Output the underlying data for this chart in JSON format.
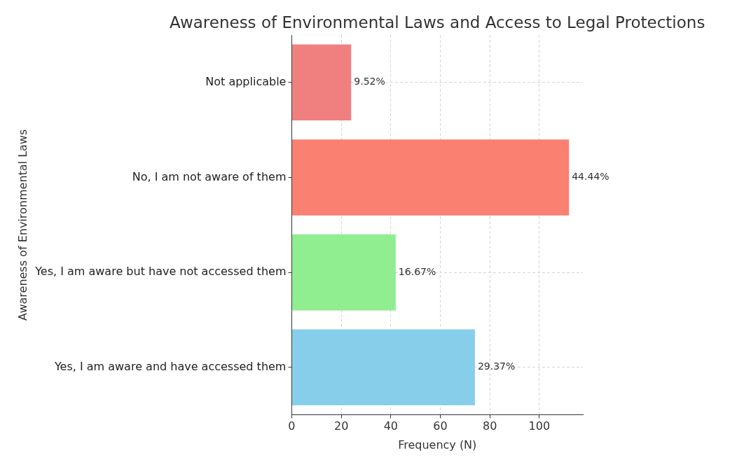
{
  "chart_data": {
    "type": "bar",
    "orientation": "horizontal",
    "title": "Awareness of Environmental Laws and Access to Legal Protections",
    "xlabel": "Frequency (N)",
    "ylabel": "Awareness of Environmental Laws",
    "categories": [
      "Not applicable",
      "No, I am not aware of them",
      "Yes, I am aware but have not accessed them",
      "Yes, I am aware and have accessed them"
    ],
    "values": [
      24,
      112,
      42,
      74
    ],
    "colors": [
      "#f08080",
      "#fa8072",
      "#90ee90",
      "#87ceeb"
    ],
    "annotations": [
      {
        "text": "9.52%",
        "x": 24,
        "y": "Not applicable"
      },
      {
        "text": "44.44%",
        "x": 112,
        "y": "No, I am not aware of them"
      },
      {
        "text": "16.67%",
        "x": 42,
        "y": "Yes, I am aware but have not accessed them"
      },
      {
        "text": "29.37%",
        "x": 74,
        "y": "Yes, I am aware and have accessed them"
      }
    ],
    "xlim": [
      0,
      117.6
    ],
    "xticks": [
      0,
      20,
      40,
      60,
      80,
      100
    ],
    "grid": true
  }
}
